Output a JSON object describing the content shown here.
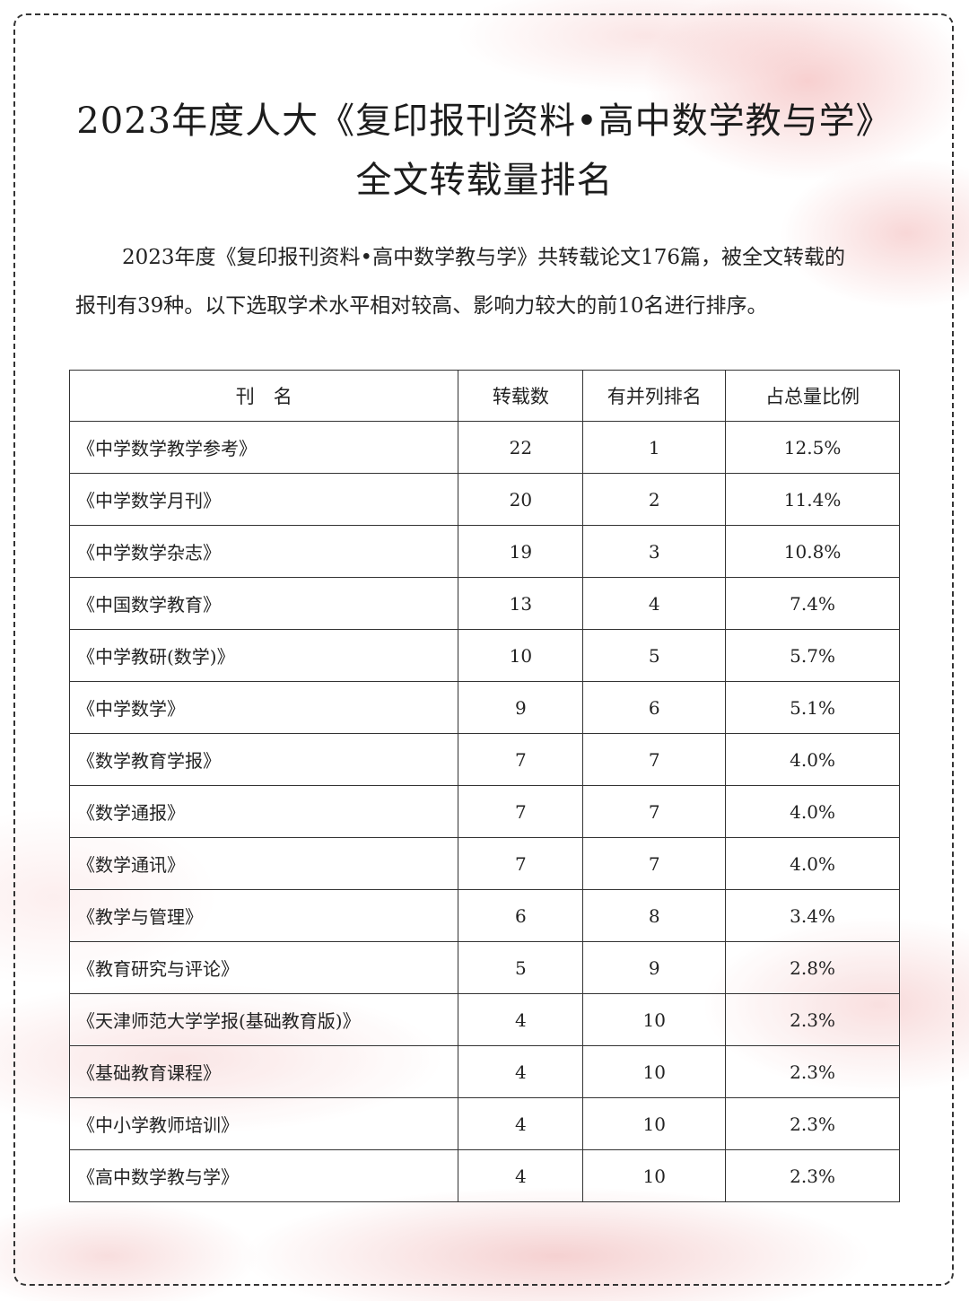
{
  "title_line1": "2023年度人大《复印报刊资料•高中数学教与学》",
  "title_line2": "全文转载量排名",
  "intro_p1": "2023年度《复印报刊资料•高中数学教与学》共转载论文176篇，被全文转载的",
  "intro_p2": "报刊有39种。以下选取学术水平相对较高、影响力较大的前10名进行排序。",
  "table": {
    "headers": [
      "刊　名",
      "转载数",
      "有并列排名",
      "占总量比例"
    ],
    "rows": [
      [
        "《中学数学教学参考》",
        "22",
        "1",
        "12.5%"
      ],
      [
        "《中学数学月刊》",
        "20",
        "2",
        "11.4%"
      ],
      [
        "《中学数学杂志》",
        "19",
        "3",
        "10.8%"
      ],
      [
        "《中国数学教育》",
        "13",
        "4",
        "7.4%"
      ],
      [
        "《中学教研(数学)》",
        "10",
        "5",
        "5.7%"
      ],
      [
        "《中学数学》",
        "9",
        "6",
        "5.1%"
      ],
      [
        "《数学教育学报》",
        "7",
        "7",
        "4.0%"
      ],
      [
        "《数学通报》",
        "7",
        "7",
        "4.0%"
      ],
      [
        "《数学通讯》",
        "7",
        "7",
        "4.0%"
      ],
      [
        "《教学与管理》",
        "6",
        "8",
        "3.4%"
      ],
      [
        "《教育研究与评论》",
        "5",
        "9",
        "2.8%"
      ],
      [
        "《天津师范大学学报(基础教育版)》",
        "4",
        "10",
        "2.3%"
      ],
      [
        "《基础教育课程》",
        "4",
        "10",
        "2.3%"
      ],
      [
        "《中小学教师培训》",
        "4",
        "10",
        "2.3%"
      ],
      [
        "《高中数学教与学》",
        "4",
        "10",
        "2.3%"
      ]
    ]
  }
}
